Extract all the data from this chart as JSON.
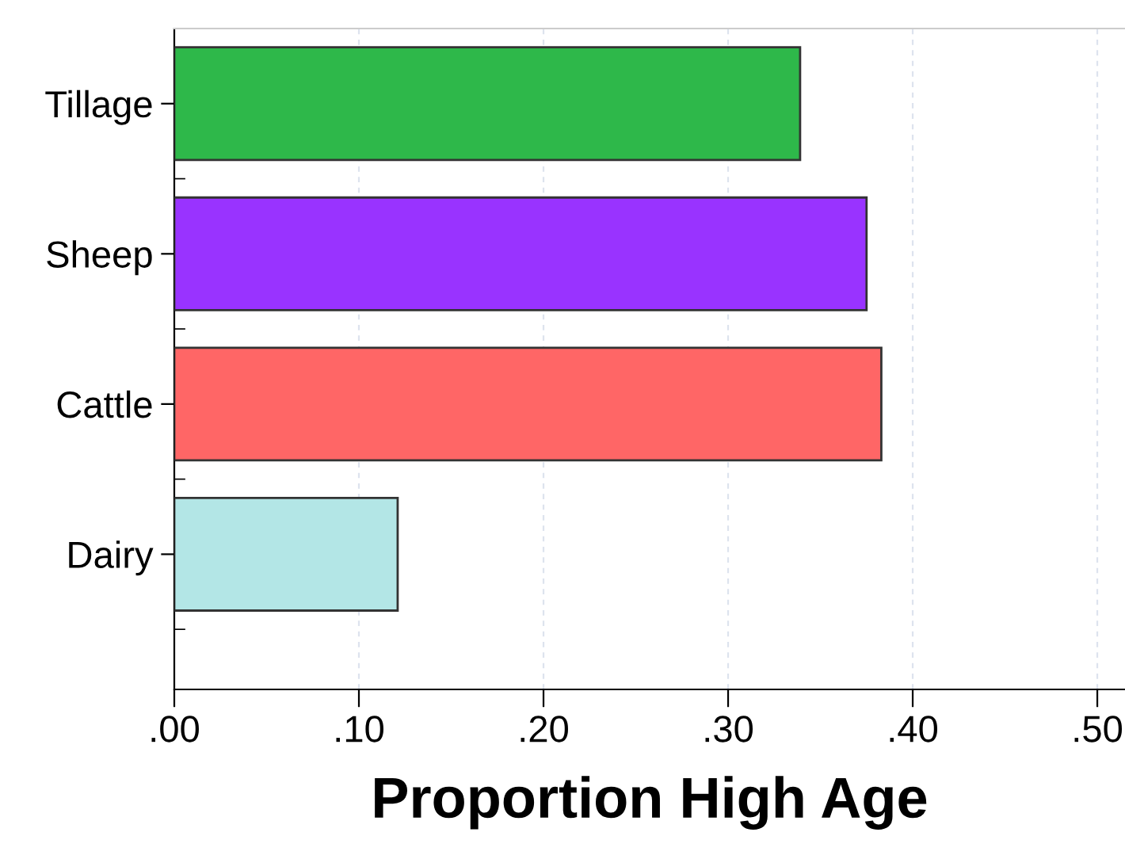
{
  "chart_data": {
    "type": "bar",
    "orientation": "horizontal",
    "xlabel": "Proportion High Age",
    "categories": [
      "Tillage",
      "Sheep",
      "Cattle",
      "Dairy"
    ],
    "values": [
      0.339,
      0.375,
      0.383,
      0.121
    ],
    "colors": [
      "#2eb84a",
      "#9933ff",
      "#ff6666",
      "#b3e6e6"
    ],
    "xlim": [
      0,
      0.515
    ],
    "xticks": [
      {
        "value": 0,
        "label": ".00"
      },
      {
        "value": 0.1,
        "label": ".10"
      },
      {
        "value": 0.2,
        "label": ".20"
      },
      {
        "value": 0.3,
        "label": ".30"
      },
      {
        "value": 0.4,
        "label": ".40"
      },
      {
        "value": 0.5,
        "label": ".50"
      }
    ],
    "grid": "x",
    "legend": false
  }
}
